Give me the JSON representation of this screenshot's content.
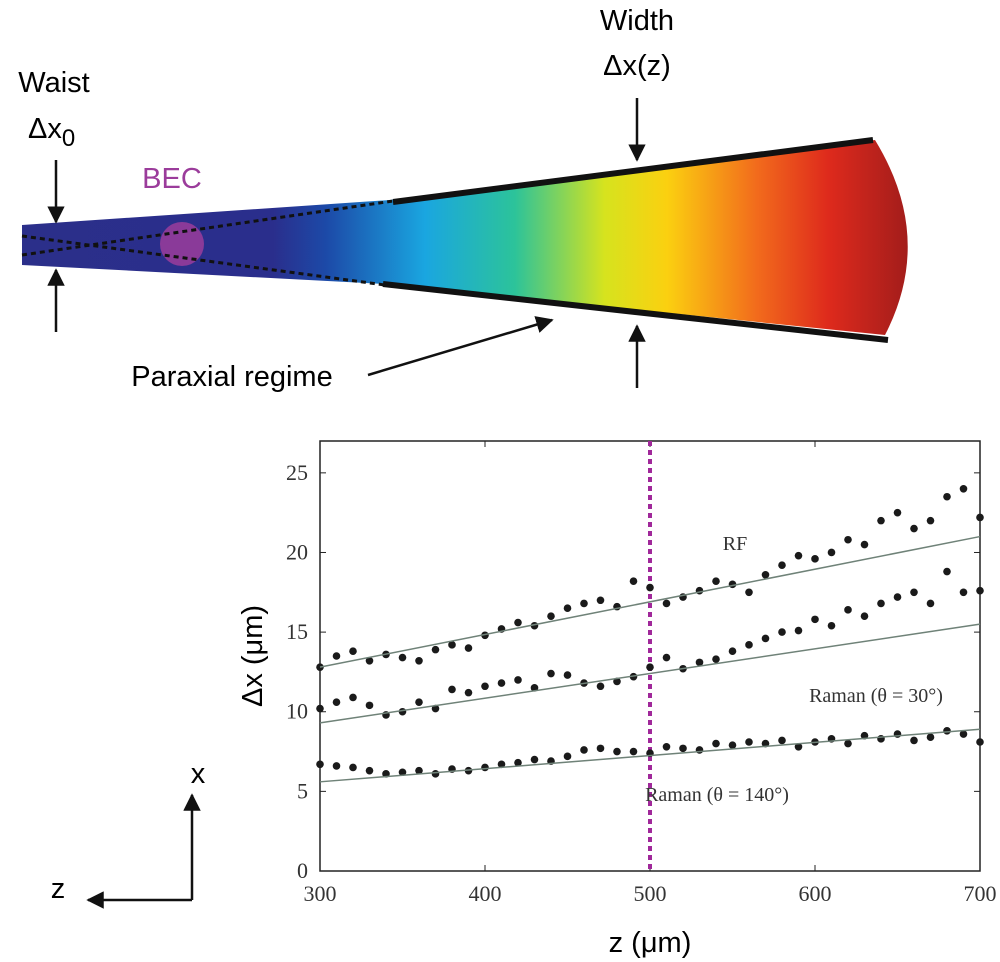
{
  "diagram": {
    "waist_label": "Waist",
    "waist_symbol": "Δx",
    "waist_subscript": "0",
    "bec": "BEC",
    "width_label": "Width",
    "width_symbol": "Δx(z)",
    "paraxial": "Paraxial regime",
    "axis_x": "x",
    "axis_z": "z"
  },
  "chart_data": {
    "type": "scatter",
    "xlabel": "z (μm)",
    "ylabel": "Δx (μm)",
    "xlim": [
      300,
      700
    ],
    "xticks": [
      300,
      400,
      500,
      600,
      700
    ],
    "ylim": [
      0,
      27
    ],
    "yticks": [
      0,
      5,
      10,
      15,
      20,
      25
    ],
    "vline": {
      "x": 500,
      "color": "#a0289a"
    },
    "series": [
      {
        "name": "RF",
        "mode": "markers",
        "color": "#1a1a1a",
        "x": [
          300,
          310,
          320,
          330,
          340,
          350,
          360,
          370,
          380,
          390,
          400,
          410,
          420,
          430,
          440,
          450,
          460,
          470,
          480,
          490,
          500,
          510,
          520,
          530,
          540,
          550,
          560,
          570,
          580,
          590,
          600,
          610,
          620,
          630,
          640,
          650,
          660,
          670,
          680,
          690,
          700
        ],
        "values": [
          12.8,
          13.5,
          13.8,
          13.2,
          13.6,
          13.4,
          13.2,
          13.9,
          14.2,
          14.0,
          14.8,
          15.2,
          15.6,
          15.4,
          16.0,
          16.5,
          16.8,
          17.0,
          16.6,
          18.2,
          17.8,
          16.8,
          17.2,
          17.6,
          18.2,
          18.0,
          17.5,
          18.6,
          19.2,
          19.8,
          19.6,
          20.0,
          20.8,
          20.5,
          22.0,
          22.5,
          21.5,
          22.0,
          23.5,
          24.0,
          22.2
        ]
      },
      {
        "name": "Raman (θ = 30°)",
        "mode": "markers",
        "color": "#1a1a1a",
        "x": [
          300,
          310,
          320,
          330,
          340,
          350,
          360,
          370,
          380,
          390,
          400,
          410,
          420,
          430,
          440,
          450,
          460,
          470,
          480,
          490,
          500,
          510,
          520,
          530,
          540,
          550,
          560,
          570,
          580,
          590,
          600,
          610,
          620,
          630,
          640,
          650,
          660,
          670,
          680,
          690,
          700
        ],
        "values": [
          10.2,
          10.6,
          10.9,
          10.4,
          9.8,
          10.0,
          10.6,
          10.2,
          11.4,
          11.2,
          11.6,
          11.8,
          12.0,
          11.5,
          12.4,
          12.3,
          11.8,
          11.6,
          11.9,
          12.2,
          12.8,
          13.4,
          12.7,
          13.1,
          13.3,
          13.8,
          14.2,
          14.6,
          15.0,
          15.1,
          15.8,
          15.4,
          16.4,
          16.0,
          16.8,
          17.2,
          17.5,
          16.8,
          18.8,
          17.5,
          17.6
        ]
      },
      {
        "name": "Raman (θ = 140°)",
        "mode": "markers",
        "color": "#1a1a1a",
        "x": [
          300,
          310,
          320,
          330,
          340,
          350,
          360,
          370,
          380,
          390,
          400,
          410,
          420,
          430,
          440,
          450,
          460,
          470,
          480,
          490,
          500,
          510,
          520,
          530,
          540,
          550,
          560,
          570,
          580,
          590,
          600,
          610,
          620,
          630,
          640,
          650,
          660,
          670,
          680,
          690,
          700
        ],
        "values": [
          6.7,
          6.6,
          6.5,
          6.3,
          6.1,
          6.2,
          6.3,
          6.1,
          6.4,
          6.3,
          6.5,
          6.7,
          6.8,
          7.0,
          6.9,
          7.2,
          7.6,
          7.7,
          7.5,
          7.5,
          7.4,
          7.8,
          7.7,
          7.6,
          8.0,
          7.9,
          8.1,
          8.0,
          8.2,
          7.8,
          8.1,
          8.3,
          8.0,
          8.5,
          8.3,
          8.6,
          8.2,
          8.4,
          8.8,
          8.6,
          8.1
        ]
      },
      {
        "mode": "line",
        "color": "#6f8278",
        "x": [
          300,
          700
        ],
        "values": [
          12.8,
          21.0
        ]
      },
      {
        "mode": "line",
        "color": "#6f8278",
        "x": [
          300,
          700
        ],
        "values": [
          9.3,
          15.5
        ]
      },
      {
        "mode": "line",
        "color": "#6f8278",
        "x": [
          300,
          700
        ],
        "values": [
          5.6,
          8.9
        ]
      }
    ]
  }
}
